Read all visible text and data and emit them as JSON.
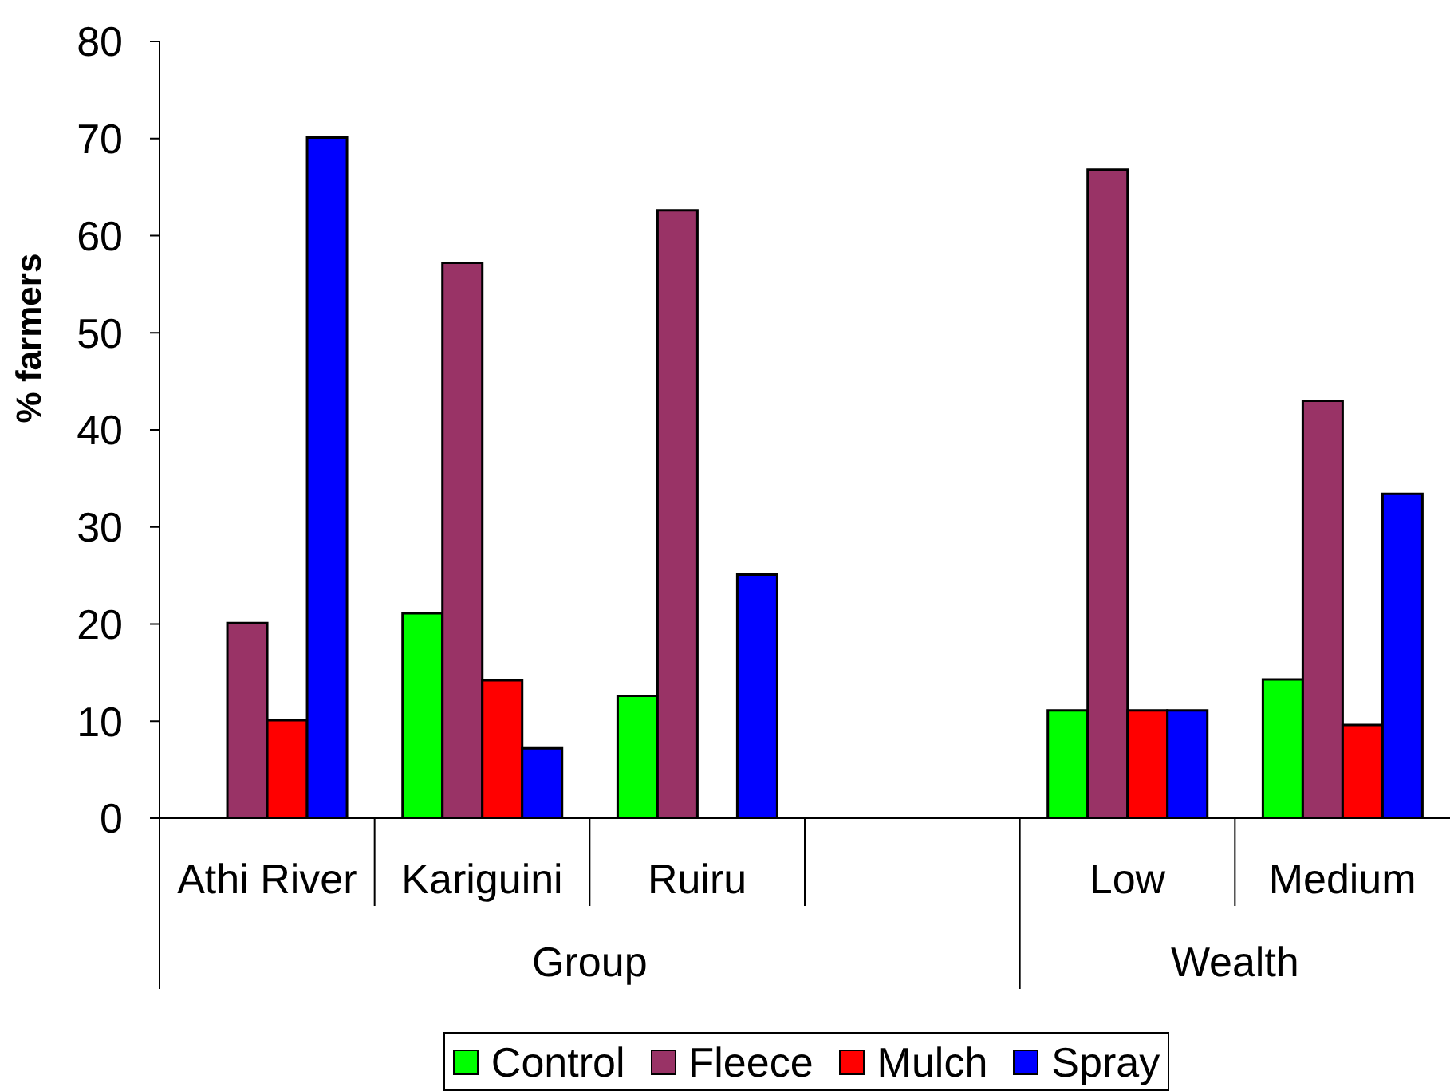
{
  "chart_data": {
    "type": "bar",
    "ylabel": "% farmers",
    "categories": [
      "Athi River",
      "Kariguini",
      "Ruiru",
      null,
      "Low",
      "Medium"
    ],
    "series": [
      {
        "name": "Control",
        "color": "#00ff00",
        "values": [
          null,
          21.1,
          12.6,
          null,
          11.1,
          14.3
        ]
      },
      {
        "name": "Fleece",
        "color": "#993366",
        "values": [
          20.1,
          57.2,
          62.6,
          null,
          66.8,
          43.0
        ]
      },
      {
        "name": "Mulch",
        "color": "#ff0000",
        "values": [
          10.1,
          14.2,
          null,
          null,
          11.1,
          9.6
        ]
      },
      {
        "name": "Spray",
        "color": "#0000ff",
        "values": [
          70.1,
          7.2,
          25.1,
          null,
          11.1,
          33.4
        ]
      }
    ],
    "ylim": [
      0,
      80
    ],
    "yticks": [
      0,
      10,
      20,
      30,
      40,
      50,
      60,
      70,
      80
    ],
    "annotations": [
      "Group",
      "Wealth"
    ],
    "legend": "bottom"
  }
}
